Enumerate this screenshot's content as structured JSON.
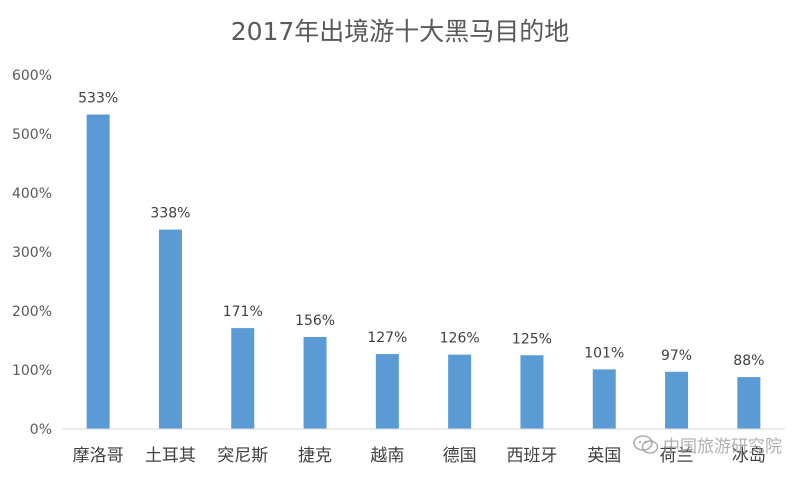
{
  "chart_data": {
    "type": "bar",
    "title": "2017年出境游十大黑马目的地",
    "xlabel": "",
    "ylabel": "",
    "categories": [
      "摩洛哥",
      "土耳其",
      "突尼斯",
      "捷克",
      "越南",
      "德国",
      "西班牙",
      "英国",
      "荷兰",
      "冰岛"
    ],
    "values": [
      533,
      338,
      171,
      156,
      127,
      126,
      125,
      101,
      97,
      88
    ],
    "data_labels": [
      "533%",
      "338%",
      "171%",
      "156%",
      "127%",
      "126%",
      "125%",
      "101%",
      "97%",
      "88%"
    ],
    "ylim": [
      0,
      600
    ],
    "yticks": [
      0,
      100,
      200,
      300,
      400,
      500,
      600
    ],
    "ytick_labels": [
      "0%",
      "100%",
      "200%",
      "300%",
      "400%",
      "500%",
      "600%"
    ],
    "grid": false,
    "legend": "none",
    "bar_color": "#5B9BD5"
  },
  "watermark": {
    "text": "中国旅游研究院",
    "icon": "wechat-icon"
  }
}
